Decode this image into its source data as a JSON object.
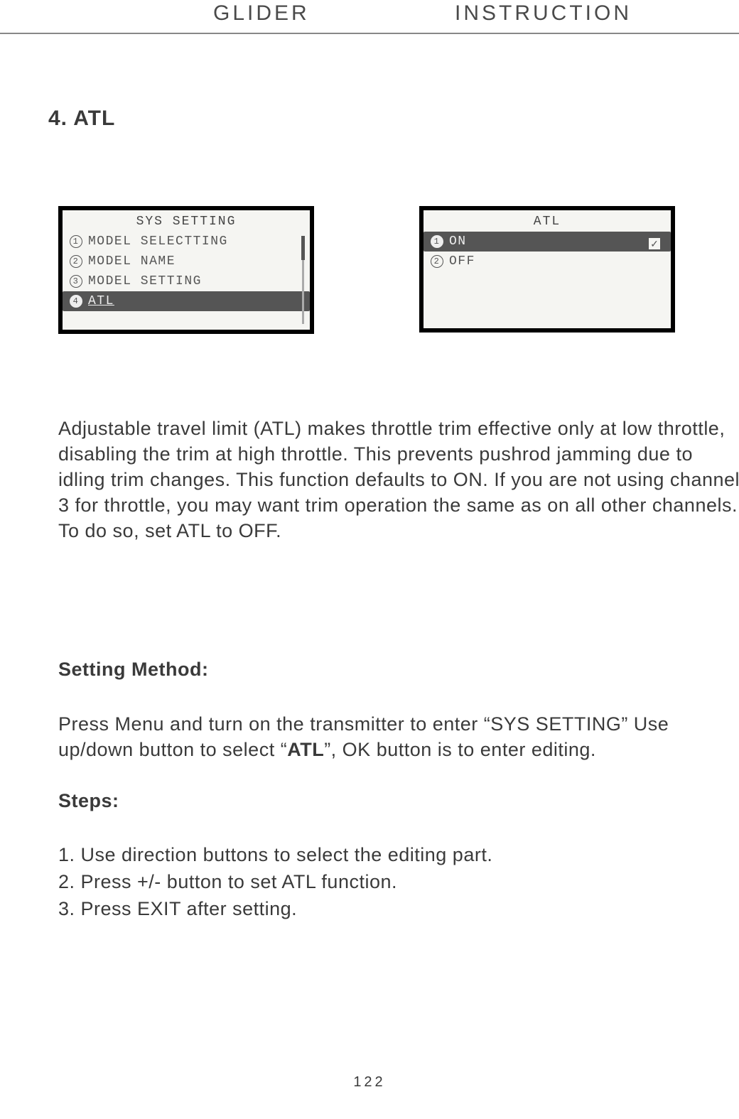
{
  "header": {
    "left": "GLIDER",
    "right": "INSTRUCTION"
  },
  "section_title": "4. ATL",
  "lcd_left": {
    "title": "SYS SETTING",
    "rows": [
      {
        "num": "1",
        "label": "MODEL SELECTTING",
        "selected": false
      },
      {
        "num": "2",
        "label": "MODEL NAME",
        "selected": false
      },
      {
        "num": "3",
        "label": "MODEL SETTING",
        "selected": false
      },
      {
        "num": "4",
        "label": "ATL",
        "selected": true
      }
    ]
  },
  "lcd_right": {
    "title": "ATL",
    "rows": [
      {
        "num": "1",
        "label": "ON",
        "selected": true,
        "checked": true
      },
      {
        "num": "2",
        "label": "OFF",
        "selected": false,
        "checked": false
      }
    ],
    "check_glyph": "✓"
  },
  "paragraph": "Adjustable travel limit (ATL) makes throttle trim effective only at low throttle, disabling the trim at high throttle. This prevents pushrod jamming due to idling trim changes. This function defaults to ON. If you are not using channel 3 for throttle, you may want trim operation the same as on all other channels. To do so, set ATL to OFF.",
  "setting_method_heading": "Setting Method:",
  "setting_method_body_pre": "Press Menu and turn on the transmitter to enter “SYS SETTING” Use up/down button to select “",
  "setting_method_bold": "ATL",
  "setting_method_body_post": "”, OK button is to enter editing.",
  "steps_heading": "Steps:",
  "steps": [
    "1. Use direction buttons to select the editing part.",
    "2. Press +/- button to set ATL function.",
    "3. Press EXIT after setting."
  ],
  "page_number": "122"
}
